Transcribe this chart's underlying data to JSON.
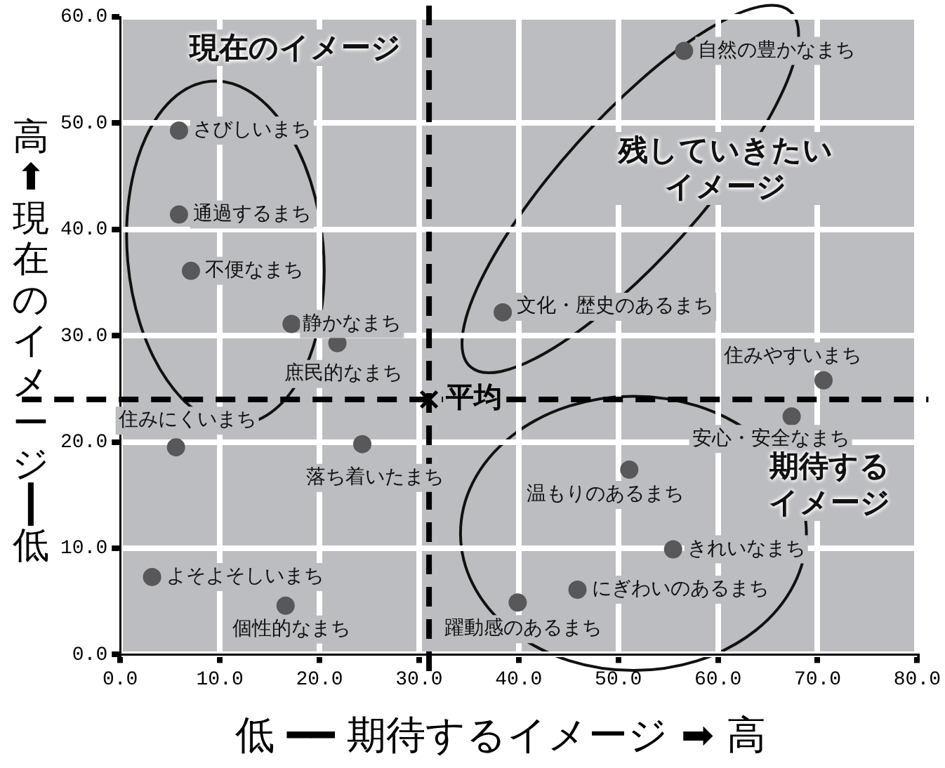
{
  "chart_data": {
    "type": "scatter",
    "xlabel": "低 ━━ 期待するイメージ ➡ 高",
    "ylabel": "高⬆現在のイメージ┃低",
    "xlim": [
      0,
      80
    ],
    "ylim": [
      0,
      60
    ],
    "xticks": [
      {
        "value": 0,
        "label": "0.0"
      },
      {
        "value": 10,
        "label": "10.0"
      },
      {
        "value": 20,
        "label": "20.0"
      },
      {
        "value": 30,
        "label": "30.0"
      },
      {
        "value": 40,
        "label": "40.0"
      },
      {
        "value": 50,
        "label": "50.0"
      },
      {
        "value": 60,
        "label": "60.0"
      },
      {
        "value": 70,
        "label": "70.0"
      },
      {
        "value": 80,
        "label": "80.0"
      }
    ],
    "yticks": [
      {
        "value": 0,
        "label": "0.0"
      },
      {
        "value": 10,
        "label": "10.0"
      },
      {
        "value": 20,
        "label": "20.0"
      },
      {
        "value": 30,
        "label": "30.0"
      },
      {
        "value": 40,
        "label": "40.0"
      },
      {
        "value": 50,
        "label": "50.0"
      },
      {
        "value": 60,
        "label": "60.0"
      }
    ],
    "grid": true,
    "legend": false,
    "series": [
      {
        "type": "scatter",
        "marker": "circle",
        "color": "#58585a",
        "x": [
          56.6,
          5.9,
          5.9,
          7.1,
          17.2,
          21.8,
          38.4,
          70.6,
          67.4,
          5.6,
          24.3,
          51.1,
          55.5,
          45.9,
          39.9,
          3.2,
          16.6
        ],
        "values": [
          56.8,
          49.3,
          41.4,
          36.1,
          31.1,
          29.3,
          32.2,
          25.8,
          22.4,
          19.5,
          19.8,
          17.4,
          9.9,
          6.1,
          4.9,
          7.3,
          4.6
        ]
      },
      {
        "type": "scatter",
        "marker": "cross",
        "color": "#000000",
        "x": [
          31.0
        ],
        "values": [
          24.0
        ]
      }
    ],
    "ref_lines": [
      {
        "axis": "x",
        "value": 31.0,
        "line_style": "dashed",
        "color": "#000000"
      },
      {
        "axis": "y",
        "value": 24.0,
        "label": "平均",
        "line_style": "dashed",
        "color": "#000000"
      }
    ],
    "annotations": [
      "現在のイメージ",
      "残していきたいイメージ",
      "期待するイメージ",
      {
        "text": "自然の豊かなまち",
        "x": 56.6,
        "y": 56.8
      },
      {
        "text": "さびしいまち",
        "x": 5.9,
        "y": 49.3
      },
      {
        "text": "通過するまち",
        "x": 5.9,
        "y": 41.4
      },
      {
        "text": "不便なまち",
        "x": 7.1,
        "y": 36.1
      },
      {
        "text": "静かなまち",
        "x": 17.2,
        "y": 31.1
      },
      {
        "text": "庶民的なまち",
        "x": 21.8,
        "y": 29.3
      },
      {
        "text": "文化・歴史のあるまち",
        "x": 38.4,
        "y": 32.2
      },
      {
        "text": "住みやすいまち",
        "x": 70.6,
        "y": 25.8
      },
      {
        "text": "安心・安全なまち",
        "x": 67.4,
        "y": 22.4
      },
      {
        "text": "住みにくいまち",
        "x": 5.6,
        "y": 19.5
      },
      {
        "text": "落ち着いたまち",
        "x": 24.3,
        "y": 19.8
      },
      {
        "text": "温もりのあるまち",
        "x": 51.1,
        "y": 17.4
      },
      {
        "text": "きれいなまち",
        "x": 55.5,
        "y": 9.9
      },
      {
        "text": "にぎわいのあるまち",
        "x": 45.9,
        "y": 6.1
      },
      {
        "text": "躍動感のあるまち",
        "x": 39.9,
        "y": 4.9
      },
      {
        "text": "よそよそしいまち",
        "x": 3.2,
        "y": 7.3
      },
      {
        "text": "個性的なまち",
        "x": 16.6,
        "y": 4.6
      }
    ]
  }
}
